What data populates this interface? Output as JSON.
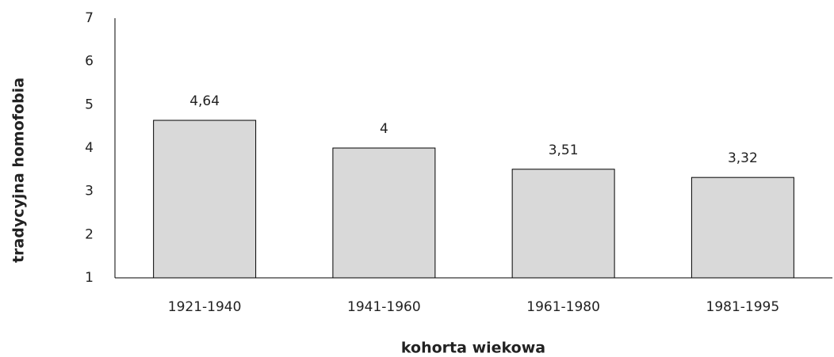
{
  "chart_data": {
    "type": "bar",
    "categories": [
      "1921-1940",
      "1941-1960",
      "1961-1980",
      "1981-1995"
    ],
    "values": [
      4.64,
      4,
      3.51,
      3.32
    ],
    "value_labels": [
      "4,64",
      "4",
      "3,51",
      "3,32"
    ],
    "color": "#d9d9d9",
    "x_label": "kohorta wiekowa",
    "y_label": "tradycyjna homofobia",
    "ylim": [
      1,
      7
    ],
    "yticks": [
      1,
      2,
      3,
      4,
      5,
      6,
      7
    ],
    "grid": false
  }
}
